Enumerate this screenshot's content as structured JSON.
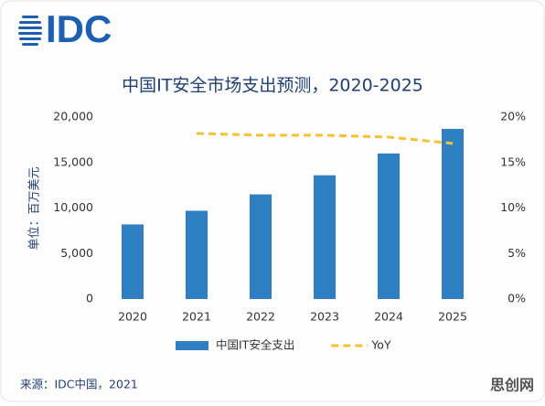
{
  "logo": "IDC",
  "chart_data": {
    "type": "bar",
    "title": "中国IT安全市场支出预测，2020-2025",
    "ylabel": "单位：百万美元",
    "categories": [
      "2020",
      "2021",
      "2022",
      "2023",
      "2024",
      "2025"
    ],
    "series": [
      {
        "name": "中国IT安全支出",
        "type": "bar",
        "color": "#2f7fc3",
        "values": [
          8200,
          9700,
          11500,
          13600,
          16000,
          18700
        ]
      },
      {
        "name": "YoY",
        "type": "line",
        "axis": "y2",
        "color": "#f2c232",
        "dashed": true,
        "values": [
          null,
          18.2,
          18.0,
          18.0,
          17.8,
          17.1
        ]
      }
    ],
    "ylim": [
      0,
      20000
    ],
    "yticks": [
      0,
      {
        "value": 5000,
        "label": "5,000"
      },
      {
        "value": 10000,
        "label": "10,000"
      },
      {
        "value": 15000,
        "label": "15,000"
      },
      {
        "value": 20000,
        "label": "20,000"
      }
    ],
    "y2lim": [
      0,
      20
    ],
    "y2ticks": [
      {
        "value": 0,
        "label": "0%"
      },
      {
        "value": 5,
        "label": "5%"
      },
      {
        "value": 10,
        "label": "10%"
      },
      {
        "value": 15,
        "label": "15%"
      },
      {
        "value": 20,
        "label": "20%"
      }
    ],
    "grid": false,
    "legend": "bottom"
  },
  "source": "来源：IDC中国，2021",
  "watermark": "思创网"
}
